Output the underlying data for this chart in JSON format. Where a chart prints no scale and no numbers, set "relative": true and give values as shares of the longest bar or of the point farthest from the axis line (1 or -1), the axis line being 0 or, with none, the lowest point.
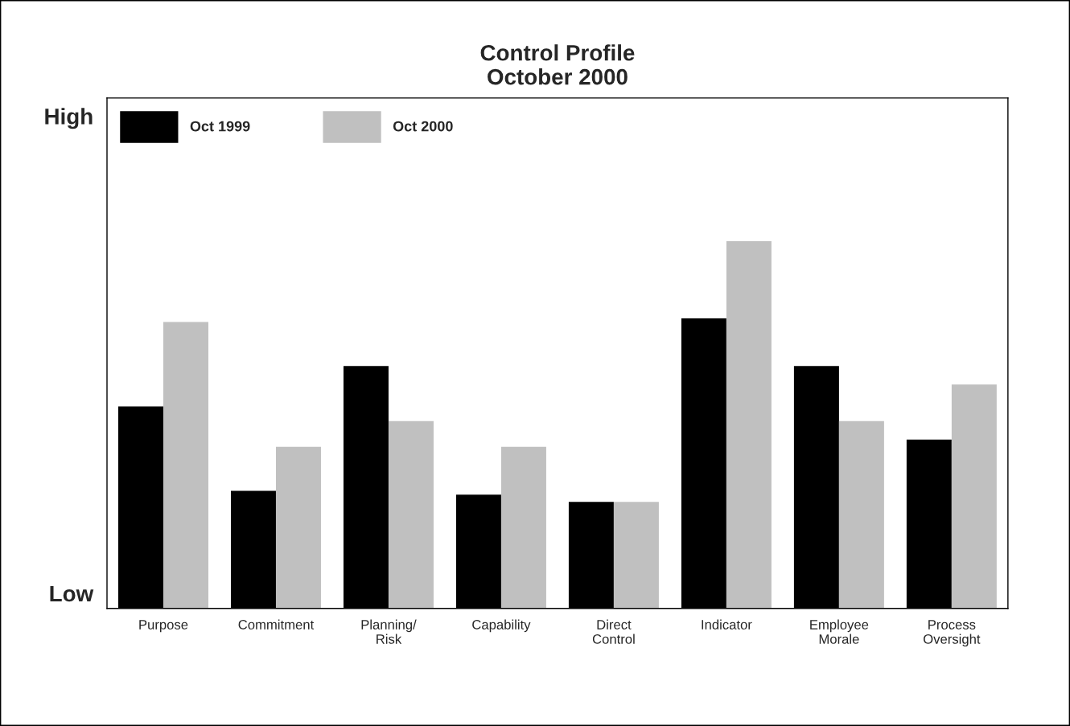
{
  "chart_data": {
    "type": "bar",
    "title": "Control Profile\nOctober 2000",
    "relative": true,
    "categories": [
      "Purpose",
      "Commitment",
      "Planning/\nRisk",
      "Capability",
      "Direct\nControl",
      "Indicator",
      "Employee\nMorale",
      "Process\nOversight"
    ],
    "series": [
      {
        "name": "Oct 1999",
        "color": "#000000",
        "values": [
          0.55,
          0.32,
          0.66,
          0.31,
          0.29,
          0.79,
          0.66,
          0.46
        ]
      },
      {
        "name": "Oct 2000",
        "color": "#c0c0c0",
        "values": [
          0.78,
          0.44,
          0.51,
          0.44,
          0.29,
          1.0,
          0.51,
          0.61
        ]
      }
    ],
    "annotations": [
      "High",
      "Low"
    ],
    "legend": "top left",
    "grid": false
  }
}
